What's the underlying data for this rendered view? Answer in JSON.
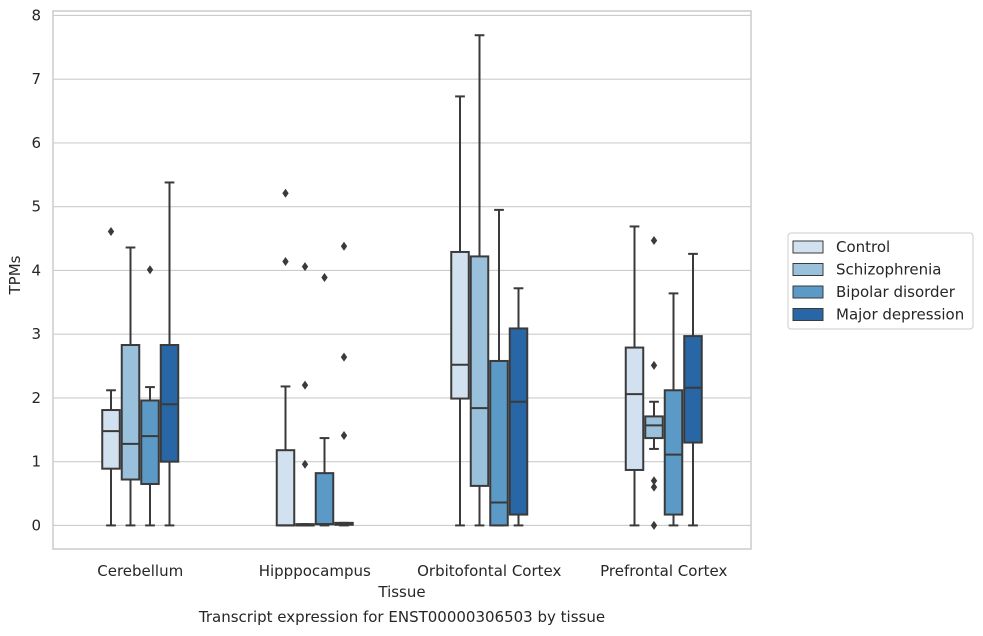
{
  "chart_data": {
    "type": "box",
    "xlabel": "Tissue",
    "ylabel": "TPMs",
    "ylim": [
      -0.37,
      8.07
    ],
    "yticks": [
      0,
      1,
      2,
      3,
      4,
      5,
      6,
      7,
      8
    ],
    "grid": "horizontal",
    "legend_placement": "right",
    "categories": [
      "Cerebellum",
      "Hipppocampus",
      "Orbitofontal Cortex",
      "Prefrontal Cortex"
    ],
    "series": [
      {
        "name": "Control",
        "color": "#d1e1f0",
        "boxes": [
          {
            "whislo": 0,
            "q1": 0.89,
            "med": 1.48,
            "q3": 1.81,
            "whishi": 2.12,
            "fliers": [
              4.61
            ]
          },
          {
            "whislo": 0,
            "q1": 0,
            "med": 0,
            "q3": 1.18,
            "whishi": 2.18,
            "fliers": [
              5.21,
              4.14
            ]
          },
          {
            "whislo": 0,
            "q1": 1.99,
            "med": 2.52,
            "q3": 4.29,
            "whishi": 6.73,
            "fliers": []
          },
          {
            "whislo": 0,
            "q1": 0.87,
            "med": 2.06,
            "q3": 2.79,
            "whishi": 4.69,
            "fliers": []
          }
        ]
      },
      {
        "name": "Schizophrenia",
        "color": "#9ac1dc",
        "boxes": [
          {
            "whislo": 0,
            "q1": 0.72,
            "med": 1.28,
            "q3": 2.83,
            "whishi": 4.36,
            "fliers": []
          },
          {
            "whislo": 0,
            "q1": 0,
            "med": 0,
            "q3": 0.02,
            "whishi": 0.02,
            "fliers": [
              4.06,
              2.2,
              0.96
            ]
          },
          {
            "whislo": 0,
            "q1": 0.62,
            "med": 1.84,
            "q3": 4.22,
            "whishi": 7.69,
            "fliers": []
          },
          {
            "whislo": 1.2,
            "q1": 1.37,
            "med": 1.57,
            "q3": 1.71,
            "whishi": 1.94,
            "fliers": [
              4.47,
              2.51,
              0.7,
              0.6,
              0.0
            ]
          }
        ]
      },
      {
        "name": "Bipolar disorder",
        "color": "#5b9ac7",
        "boxes": [
          {
            "whislo": 0,
            "q1": 0.65,
            "med": 1.4,
            "q3": 1.96,
            "whishi": 2.17,
            "fliers": [
              4.01
            ]
          },
          {
            "whislo": 0,
            "q1": 0.02,
            "med": 0.02,
            "q3": 0.82,
            "whishi": 1.37,
            "fliers": [
              3.89
            ]
          },
          {
            "whislo": 0,
            "q1": 0,
            "med": 0.36,
            "q3": 2.58,
            "whishi": 4.95,
            "fliers": []
          },
          {
            "whislo": 0,
            "q1": 0.17,
            "med": 1.11,
            "q3": 2.12,
            "whishi": 3.64,
            "fliers": []
          }
        ]
      },
      {
        "name": "Major depression",
        "color": "#2866a6",
        "boxes": [
          {
            "whislo": 0,
            "q1": 1.0,
            "med": 1.9,
            "q3": 2.83,
            "whishi": 5.38,
            "fliers": []
          },
          {
            "whislo": 0,
            "q1": 0.01,
            "med": 0.02,
            "q3": 0.04,
            "whishi": 0.04,
            "fliers": [
              4.38,
              2.64,
              1.41
            ]
          },
          {
            "whislo": 0,
            "q1": 0.17,
            "med": 1.94,
            "q3": 3.09,
            "whishi": 3.72,
            "fliers": []
          },
          {
            "whislo": 0,
            "q1": 1.3,
            "med": 2.16,
            "q3": 2.97,
            "whishi": 4.26,
            "fliers": []
          }
        ]
      }
    ]
  },
  "caption": "Transcript expression for ENST00000306503 by tissue",
  "colors": {
    "grid": "#cccccc",
    "line": "#3a3a3a",
    "frame": "#cccccc"
  }
}
